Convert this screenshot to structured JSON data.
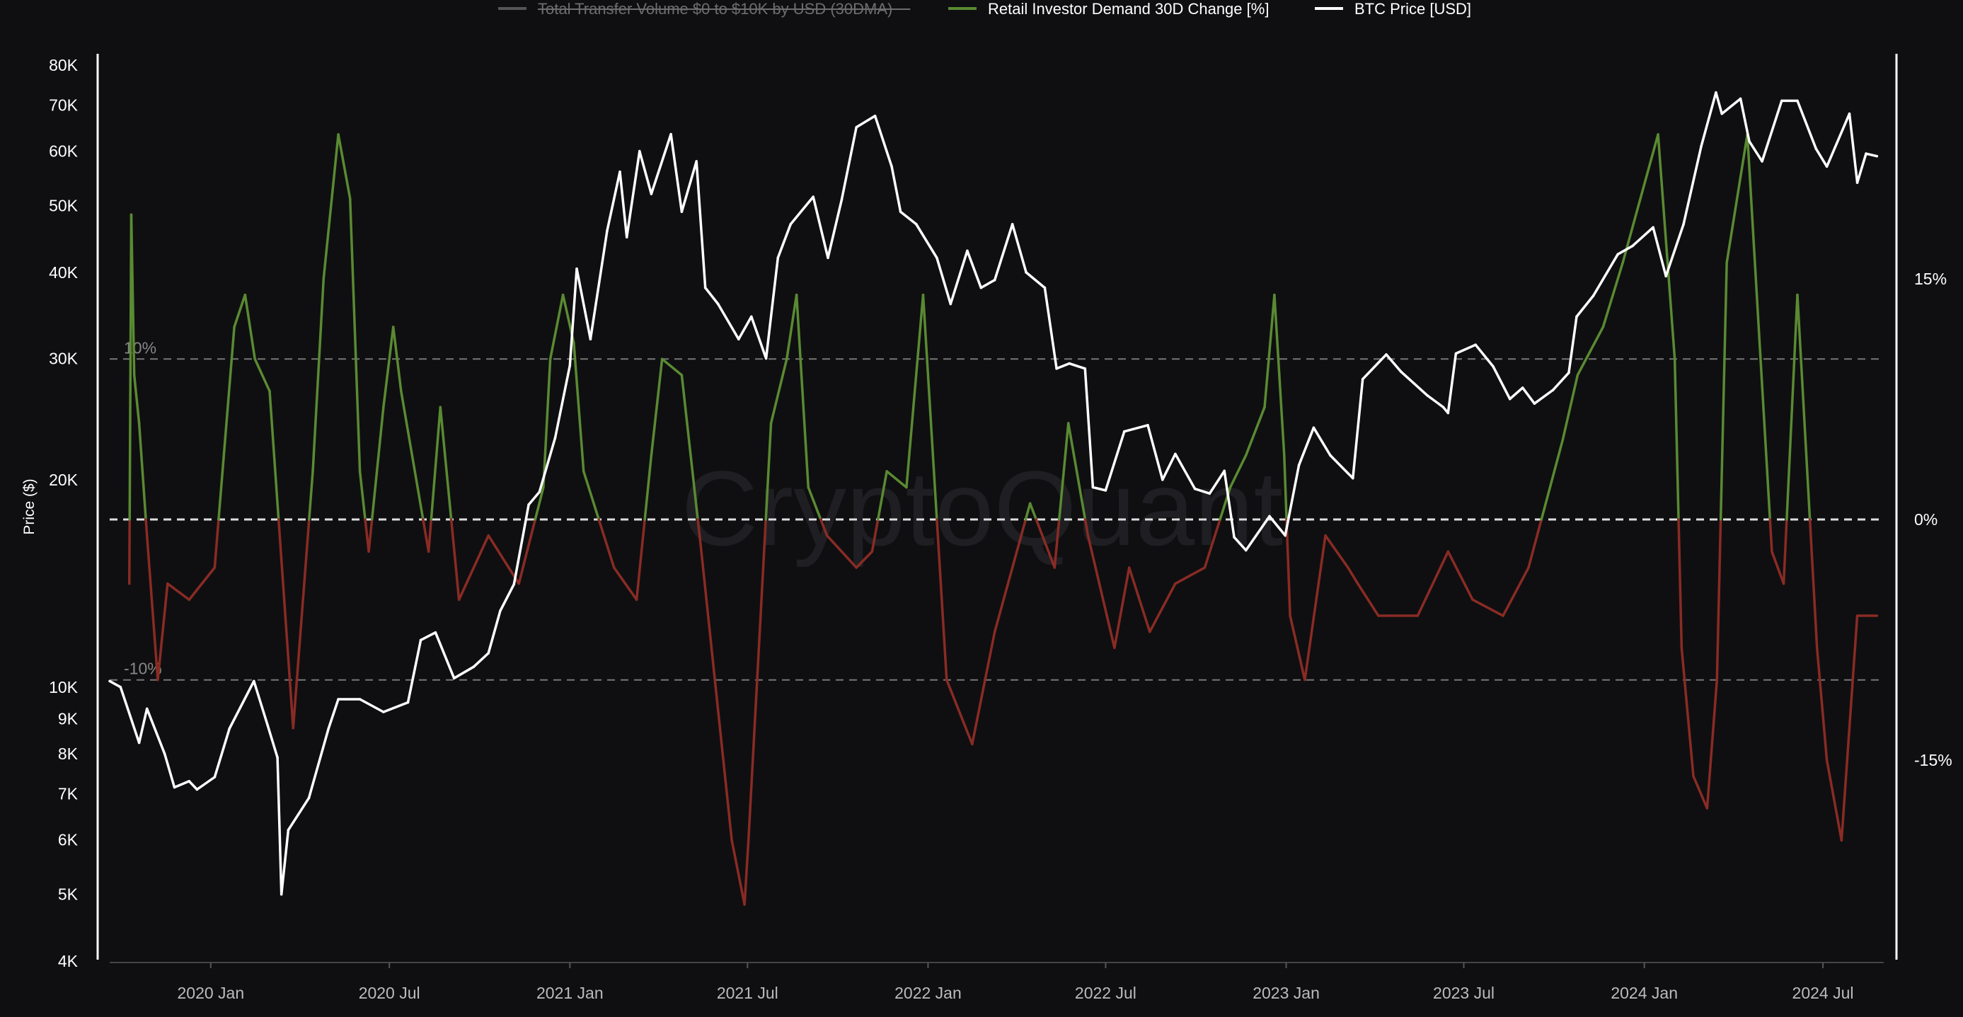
{
  "chart_data": {
    "type": "line",
    "legend": {
      "placement": "top-center",
      "items": [
        {
          "label": "Total Transfer Volume $0 to $10K by USD (30DMA)",
          "color": "#555555",
          "hidden": true
        },
        {
          "label": "Retail Investor Demand 30D Change [%]",
          "color": "#5a8a32",
          "hidden": false
        },
        {
          "label": "BTC Price [USD]",
          "color": "#ffffff",
          "hidden": false
        }
      ]
    },
    "watermark": "CryptoQuant",
    "left_axis": {
      "label": "Price ($)",
      "scale": "log",
      "range": [
        4000,
        80000
      ],
      "ticks": [
        4000,
        5000,
        6000,
        7000,
        8000,
        9000,
        10000,
        20000,
        30000,
        40000,
        50000,
        60000,
        70000,
        80000
      ],
      "tick_labels": [
        "4K",
        "5K",
        "6K",
        "7K",
        "8K",
        "9K",
        "10K",
        "20K",
        "30K",
        "40K",
        "50K",
        "60K",
        "70K",
        "80K"
      ]
    },
    "right_axis": {
      "label": "",
      "range": [
        -25,
        25
      ],
      "ticks": [
        15,
        0,
        -15
      ],
      "tick_labels": [
        "15%",
        "0%",
        "-15%"
      ]
    },
    "x_axis": {
      "range": [
        "2019-09-20",
        "2024-09-01"
      ],
      "ticks": [
        "2020-01-01",
        "2020-07-01",
        "2021-01-01",
        "2021-07-01",
        "2022-01-01",
        "2022-07-01",
        "2023-01-01",
        "2023-07-01",
        "2024-01-01",
        "2024-07-01"
      ],
      "tick_labels": [
        "2020 Jan",
        "2020 Jul",
        "2021 Jan",
        "2021 Jul",
        "2022 Jan",
        "2022 Jul",
        "2023 Jan",
        "2023 Jul",
        "2024 Jan",
        "2024 Jul"
      ]
    },
    "reference_lines": [
      {
        "value": 10,
        "label": "10%"
      },
      {
        "value": 0,
        "label": ""
      },
      {
        "value": -10,
        "label": "-10%"
      }
    ],
    "colors": {
      "positive": "#5a8a32",
      "negative": "#8a2b24",
      "price": "#ffffff",
      "grid": "#777777",
      "zero": "#dddddd",
      "background": "#0f0f11"
    },
    "grid": false,
    "series": [
      {
        "name": "BTC Price [USD]",
        "axis": "left",
        "x": [
          "2019-09-20",
          "2019-10-01",
          "2019-10-20",
          "2019-10-28",
          "2019-11-15",
          "2019-11-25",
          "2019-12-10",
          "2019-12-18",
          "2020-01-05",
          "2020-01-20",
          "2020-02-14",
          "2020-02-28",
          "2020-03-09",
          "2020-03-13",
          "2020-03-20",
          "2020-04-10",
          "2020-04-30",
          "2020-05-10",
          "2020-06-01",
          "2020-06-25",
          "2020-07-20",
          "2020-08-02",
          "2020-08-17",
          "2020-09-05",
          "2020-09-25",
          "2020-10-10",
          "2020-10-22",
          "2020-11-05",
          "2020-11-20",
          "2020-12-01",
          "2020-12-17",
          "2021-01-01",
          "2021-01-08",
          "2021-01-22",
          "2021-02-08",
          "2021-02-21",
          "2021-02-28",
          "2021-03-13",
          "2021-03-25",
          "2021-04-14",
          "2021-04-25",
          "2021-05-10",
          "2021-05-19",
          "2021-06-01",
          "2021-06-22",
          "2021-07-05",
          "2021-07-20",
          "2021-08-01",
          "2021-08-14",
          "2021-09-06",
          "2021-09-21",
          "2021-10-05",
          "2021-10-20",
          "2021-11-08",
          "2021-11-25",
          "2021-12-04",
          "2021-12-20",
          "2022-01-10",
          "2022-01-24",
          "2022-02-10",
          "2022-02-24",
          "2022-03-10",
          "2022-03-28",
          "2022-04-11",
          "2022-04-30",
          "2022-05-12",
          "2022-05-25",
          "2022-06-10",
          "2022-06-18",
          "2022-07-01",
          "2022-07-20",
          "2022-08-13",
          "2022-08-28",
          "2022-09-10",
          "2022-09-30",
          "2022-10-15",
          "2022-10-30",
          "2022-11-09",
          "2022-11-21",
          "2022-12-15",
          "2022-12-31",
          "2023-01-14",
          "2023-01-29",
          "2023-02-15",
          "2023-03-10",
          "2023-03-20",
          "2023-04-13",
          "2023-04-28",
          "2023-05-25",
          "2023-06-10",
          "2023-06-15",
          "2023-06-23",
          "2023-07-13",
          "2023-07-31",
          "2023-08-17",
          "2023-08-30",
          "2023-09-11",
          "2023-09-30",
          "2023-10-16",
          "2023-10-24",
          "2023-11-10",
          "2023-12-05",
          "2023-12-20",
          "2024-01-10",
          "2024-01-23",
          "2024-02-10",
          "2024-02-28",
          "2024-03-14",
          "2024-03-20",
          "2024-04-08",
          "2024-04-17",
          "2024-04-30",
          "2024-05-20",
          "2024-06-05",
          "2024-06-24",
          "2024-07-05",
          "2024-07-28",
          "2024-08-05",
          "2024-08-14",
          "2024-08-25"
        ],
        "values": [
          10200,
          10000,
          8300,
          9300,
          8000,
          7150,
          7300,
          7100,
          7400,
          8700,
          10200,
          8800,
          7900,
          5000,
          6200,
          6900,
          8700,
          9600,
          9600,
          9200,
          9500,
          11700,
          12000,
          10300,
          10700,
          11200,
          12900,
          14100,
          18400,
          19200,
          23000,
          29300,
          40500,
          32000,
          46000,
          56000,
          45000,
          60000,
          52000,
          63500,
          49000,
          58000,
          38000,
          36000,
          32000,
          34500,
          30000,
          42000,
          47000,
          51500,
          42000,
          51000,
          65000,
          67500,
          57000,
          49000,
          47000,
          42000,
          36000,
          43000,
          38000,
          39000,
          47000,
          40000,
          38000,
          29000,
          29500,
          29000,
          19500,
          19300,
          23500,
          24000,
          20000,
          21800,
          19400,
          19100,
          20600,
          16500,
          15800,
          17700,
          16600,
          21000,
          23800,
          21700,
          20100,
          28000,
          30400,
          28700,
          26500,
          25500,
          25000,
          30500,
          31400,
          29200,
          26200,
          27200,
          25800,
          27000,
          28600,
          34500,
          37000,
          42500,
          43700,
          46500,
          39500,
          47000,
          61000,
          73000,
          68000,
          71500,
          62000,
          58000,
          71000,
          71000,
          60500,
          57000,
          68000,
          54000,
          59500,
          59000
        ]
      },
      {
        "name": "Retail Investor Demand 30D Change [%]",
        "axis": "right",
        "x": [
          "2019-10-10",
          "2019-10-12",
          "2019-10-15",
          "2019-10-20",
          "2019-10-28",
          "2019-11-08",
          "2019-11-18",
          "2019-12-10",
          "2020-01-05",
          "2020-01-25",
          "2020-02-05",
          "2020-02-15",
          "2020-03-01",
          "2020-03-25",
          "2020-04-14",
          "2020-04-25",
          "2020-05-10",
          "2020-05-22",
          "2020-06-01",
          "2020-06-10",
          "2020-06-25",
          "2020-07-05",
          "2020-07-13",
          "2020-08-10",
          "2020-08-22",
          "2020-09-10",
          "2020-10-10",
          "2020-11-10",
          "2020-12-05",
          "2020-12-12",
          "2020-12-25",
          "2021-01-05",
          "2021-01-15",
          "2021-02-15",
          "2021-03-10",
          "2021-03-25",
          "2021-04-05",
          "2021-04-25",
          "2021-05-15",
          "2021-06-15",
          "2021-06-28",
          "2021-07-02",
          "2021-07-25",
          "2021-08-10",
          "2021-08-20",
          "2021-09-01",
          "2021-09-20",
          "2021-10-05",
          "2021-10-20",
          "2021-11-05",
          "2021-11-20",
          "2021-12-10",
          "2021-12-27",
          "2022-01-20",
          "2022-02-15",
          "2022-03-10",
          "2022-04-15",
          "2022-05-10",
          "2022-05-24",
          "2022-06-13",
          "2022-07-10",
          "2022-07-25",
          "2022-08-15",
          "2022-09-10",
          "2022-10-10",
          "2022-11-05",
          "2022-11-21",
          "2022-12-10",
          "2022-12-20",
          "2022-12-30",
          "2023-01-05",
          "2023-01-20",
          "2023-02-10",
          "2023-03-05",
          "2023-03-15",
          "2023-04-05",
          "2023-05-15",
          "2023-06-15",
          "2023-07-10",
          "2023-08-10",
          "2023-09-05",
          "2023-10-10",
          "2023-10-25",
          "2023-11-20",
          "2023-12-10",
          "2024-01-15",
          "2024-02-01",
          "2024-02-08",
          "2024-02-20",
          "2024-03-05",
          "2024-03-15",
          "2024-03-25",
          "2024-04-15",
          "2024-05-10",
          "2024-05-22",
          "2024-06-05",
          "2024-06-25",
          "2024-07-05",
          "2024-07-20",
          "2024-08-05",
          "2024-08-25"
        ],
        "values": [
          -4,
          19,
          9,
          6,
          -1,
          -10,
          -4,
          -5,
          -3,
          12,
          14,
          10,
          8,
          -13,
          3,
          15,
          24,
          20,
          3,
          -2,
          7,
          12,
          8,
          -2,
          7,
          -5,
          -1,
          -4,
          2,
          10,
          14,
          11,
          3,
          -3,
          -5,
          4,
          10,
          9,
          -2,
          -20,
          -24,
          -20,
          6,
          10,
          14,
          2,
          -1,
          -2,
          -3,
          -2,
          3,
          2,
          14,
          -10,
          -14,
          -7,
          1,
          -3,
          6,
          -1,
          -8,
          -3,
          -7,
          -4,
          -3,
          2,
          4,
          7,
          14,
          4,
          -6,
          -10,
          -1,
          -3,
          -4,
          -6,
          -6,
          -2,
          -5,
          -6,
          -3,
          5,
          9,
          12,
          16,
          24,
          10,
          -8,
          -16,
          -18,
          -10,
          16,
          24,
          -2,
          -4,
          14,
          -8,
          -15,
          -20,
          -6,
          -6
        ]
      }
    ]
  }
}
